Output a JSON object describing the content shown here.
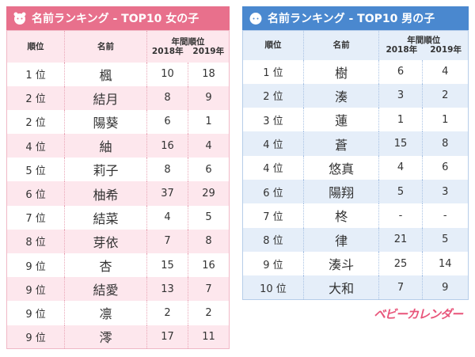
{
  "girls": {
    "title": "名前ランキング - TOP10 女の子",
    "columns": {
      "rank": "順位",
      "name": "名前",
      "group": "年間順位",
      "years": [
        "2018年",
        "2019年"
      ]
    },
    "rows": [
      [
        "1 位",
        "楓",
        10,
        18
      ],
      [
        "2 位",
        "結月",
        8,
        9
      ],
      [
        "2 位",
        "陽葵",
        6,
        1
      ],
      [
        "4 位",
        "紬",
        16,
        4
      ],
      [
        "5 位",
        "莉子",
        8,
        6
      ],
      [
        "6 位",
        "柚希",
        37,
        29
      ],
      [
        "7 位",
        "結菜",
        4,
        5
      ],
      [
        "8 位",
        "芽依",
        7,
        8
      ],
      [
        "9 位",
        "杏",
        15,
        16
      ],
      [
        "9 位",
        "結愛",
        13,
        7
      ],
      [
        "9 位",
        "凛",
        2,
        2
      ],
      [
        "9 位",
        "澪",
        17,
        11
      ]
    ]
  },
  "boys": {
    "title": "名前ランキング - TOP10 男の子",
    "columns": {
      "rank": "順位",
      "name": "名前",
      "group": "年間順位",
      "years": [
        "2018年",
        "2019年"
      ]
    },
    "rows": [
      [
        "1 位",
        "樹",
        6,
        4
      ],
      [
        "2 位",
        "湊",
        3,
        2
      ],
      [
        "3 位",
        "蓮",
        1,
        1
      ],
      [
        "4 位",
        "蒼",
        15,
        8
      ],
      [
        "4 位",
        "悠真",
        4,
        6
      ],
      [
        "6 位",
        "陽翔",
        5,
        3
      ],
      [
        "7 位",
        "柊",
        "-",
        "-"
      ],
      [
        "8 位",
        "律",
        21,
        5
      ],
      [
        "9 位",
        "湊斗",
        25,
        14
      ],
      [
        "10 位",
        "大和",
        7,
        9
      ]
    ]
  },
  "logo": "ベビーカレンダー"
}
